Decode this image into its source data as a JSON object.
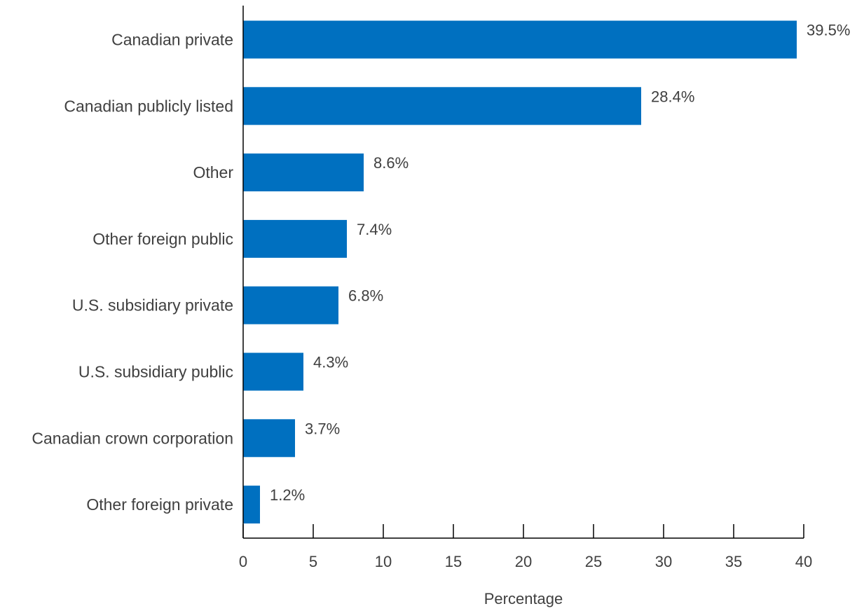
{
  "chart_data": {
    "type": "bar",
    "orientation": "horizontal",
    "categories": [
      "Canadian private",
      "Canadian publicly listed",
      "Other",
      "Other foreign public",
      "U.S. subsidiary private",
      "U.S. subsidiary public",
      "Canadian crown corporation",
      "Other foreign private"
    ],
    "values": [
      39.5,
      28.4,
      8.6,
      7.4,
      6.8,
      4.3,
      3.7,
      1.2
    ],
    "value_labels": [
      "39.5%",
      "28.4%",
      "8.6%",
      "7.4%",
      "6.8%",
      "4.3%",
      "3.7%",
      "1.2%"
    ],
    "xlabel": "Percentage",
    "ylabel": "",
    "title": "",
    "xlim": [
      0,
      40
    ],
    "xticks": [
      0,
      5,
      10,
      15,
      20,
      25,
      30,
      35,
      40
    ],
    "xtick_labels": [
      "0",
      "5",
      "10",
      "15",
      "20",
      "25",
      "30",
      "35",
      "40"
    ],
    "grid": false,
    "legend": "none",
    "bar_color": "#0070c0"
  }
}
